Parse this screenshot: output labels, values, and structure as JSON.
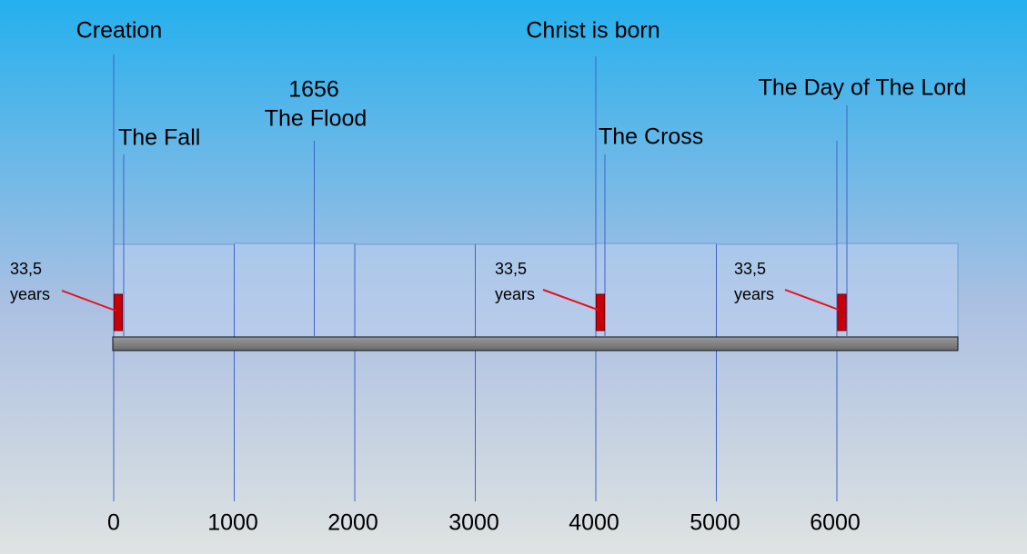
{
  "events": [
    {
      "label": "Creation"
    },
    {
      "label": "The Fall"
    },
    {
      "year": "1656",
      "label": "The Flood"
    },
    {
      "label": "Christ is born"
    },
    {
      "label": "The Cross"
    },
    {
      "label": "The Day of The Lord"
    }
  ],
  "durations": [
    {
      "value": "33,5",
      "unit": "years"
    },
    {
      "value": "33,5",
      "unit": "years"
    },
    {
      "value": "33,5",
      "unit": "years"
    }
  ],
  "axis": {
    "ticks": [
      "0",
      "1000",
      "2000",
      "3000",
      "4000",
      "5000",
      "6000"
    ]
  }
}
